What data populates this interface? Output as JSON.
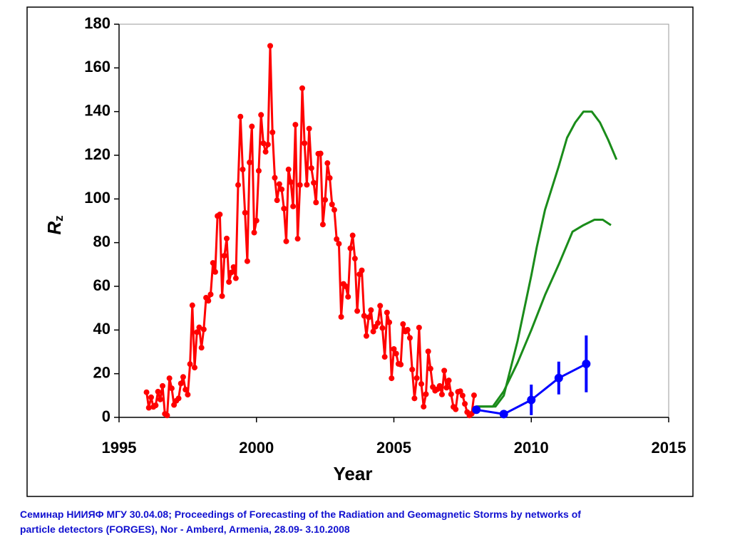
{
  "chart_data": {
    "type": "line",
    "xlabel": "Year",
    "ylabel": {
      "main": "R",
      "sub": "z"
    },
    "xlim": [
      1995,
      2015
    ],
    "xticks": [
      1995,
      2000,
      2005,
      2010,
      2015
    ],
    "ylim": [
      0,
      180
    ],
    "yticks": [
      0,
      20,
      40,
      60,
      80,
      100,
      120,
      140,
      160,
      180
    ],
    "series": [
      {
        "color": "#ff0000",
        "markers": true,
        "x": [
          1996,
          1996.083,
          1996.167,
          1996.25,
          1996.333,
          1996.417,
          1996.5,
          1996.583,
          1996.667,
          1996.75,
          1996.833,
          1996.917,
          1997,
          1997.083,
          1997.167,
          1997.25,
          1997.333,
          1997.417,
          1997.5,
          1997.583,
          1997.667,
          1997.75,
          1997.833,
          1997.917,
          1998,
          1998.083,
          1998.167,
          1998.25,
          1998.333,
          1998.417,
          1998.5,
          1998.583,
          1998.667,
          1998.75,
          1998.833,
          1998.917,
          1999,
          1999.083,
          1999.167,
          1999.25,
          1999.333,
          1999.417,
          1999.5,
          1999.583,
          1999.667,
          1999.75,
          1999.833,
          1999.917,
          2000,
          2000.083,
          2000.167,
          2000.25,
          2000.333,
          2000.417,
          2000.5,
          2000.583,
          2000.667,
          2000.75,
          2000.833,
          2000.917,
          2001,
          2001.083,
          2001.167,
          2001.25,
          2001.333,
          2001.417,
          2001.5,
          2001.583,
          2001.667,
          2001.75,
          2001.833,
          2001.917,
          2002,
          2002.083,
          2002.167,
          2002.25,
          2002.333,
          2002.417,
          2002.5,
          2002.583,
          2002.667,
          2002.75,
          2002.833,
          2002.917,
          2003,
          2003.083,
          2003.167,
          2003.25,
          2003.333,
          2003.417,
          2003.5,
          2003.583,
          2003.667,
          2003.75,
          2003.833,
          2003.917,
          2004,
          2004.083,
          2004.167,
          2004.25,
          2004.333,
          2004.417,
          2004.5,
          2004.583,
          2004.667,
          2004.75,
          2004.833,
          2004.917,
          2005,
          2005.083,
          2005.167,
          2005.25,
          2005.333,
          2005.417,
          2005.5,
          2005.583,
          2005.667,
          2005.75,
          2005.833,
          2005.917,
          2006,
          2006.083,
          2006.167,
          2006.25,
          2006.333,
          2006.417,
          2006.5,
          2006.583,
          2006.667,
          2006.75,
          2006.833,
          2006.917,
          2007,
          2007.083,
          2007.167,
          2007.25,
          2007.333,
          2007.417,
          2007.5,
          2007.583,
          2007.667,
          2007.75,
          2007.833,
          2007.917
        ],
        "values": [
          11.5,
          4.4,
          9.2,
          4.8,
          5.5,
          11.8,
          8.2,
          14.4,
          1.6,
          0.9,
          17.9,
          13.3,
          5.7,
          7.6,
          8.7,
          15.5,
          18.5,
          12.7,
          10.4,
          24.4,
          51.3,
          22.8,
          39,
          41.2,
          31.9,
          40.3,
          54.8,
          53.4,
          56.3,
          70.7,
          66.6,
          92.2,
          92.9,
          55.5,
          74,
          81.9,
          62,
          66.3,
          68.8,
          63.7,
          106.4,
          137.7,
          113.5,
          93.7,
          71.5,
          116.7,
          133.2,
          84.6,
          90.1,
          112.9,
          138.5,
          125.5,
          121.6,
          124.9,
          170.1,
          130.5,
          109.7,
          99.4,
          106.8,
          104.4,
          95.6,
          80.6,
          113.5,
          107.7,
          96.6,
          134,
          81.8,
          106.4,
          150.7,
          125.5,
          106.5,
          132.2,
          114.1,
          107.4,
          98.4,
          120.7,
          120.8,
          88.3,
          99.6,
          116.4,
          109.6,
          97.5,
          95,
          81.6,
          79.5,
          46,
          61.1,
          60,
          55.2,
          77.4,
          83.3,
          72.7,
          48.7,
          65.5,
          67.3,
          46.5,
          37.3,
          45.8,
          49.1,
          39.3,
          41.5,
          43.2,
          51.1,
          40.9,
          27.7,
          48,
          43.5,
          17.9,
          31.3,
          29.2,
          24.5,
          24.2,
          42.7,
          39.3,
          40.1,
          36.4,
          21.9,
          8.7,
          18,
          41.1,
          15.3,
          4.9,
          10.6,
          30.2,
          22.3,
          13.9,
          12.2,
          12.9,
          14.4,
          10.5,
          21.4,
          13.6,
          16.9,
          10.6,
          4.8,
          3.7,
          11.7,
          12,
          10,
          6.2,
          2.4,
          0.9,
          1.7,
          10.1
        ]
      },
      {
        "color": "#1a8c1a",
        "markers": false,
        "x": [
          2008,
          2008.7,
          2009,
          2009.5,
          2010,
          2010.2,
          2010.5,
          2011,
          2011.3,
          2011.6,
          2011.9,
          2012.2,
          2012.5,
          2012.8,
          2013.1
        ],
        "values": [
          5,
          5,
          10,
          35,
          65,
          78,
          95,
          115,
          128,
          135,
          140,
          140,
          135,
          127,
          118
        ]
      },
      {
        "color": "#1a8c1a",
        "markers": false,
        "x": [
          2008,
          2008.6,
          2009,
          2009.5,
          2010,
          2010.5,
          2011,
          2011.5,
          2011.9,
          2012.3,
          2012.6,
          2012.9
        ],
        "values": [
          5,
          5,
          12,
          25,
          40,
          56,
          70,
          85,
          88,
          90.5,
          90.5,
          88
        ]
      },
      {
        "color": "#0000ff",
        "markers": true,
        "x": [
          2008,
          2009,
          2010,
          2011,
          2012
        ],
        "values": [
          3.5,
          1.5,
          8,
          18,
          24.5
        ],
        "errors": [
          null,
          null,
          7,
          7.5,
          13
        ]
      }
    ]
  },
  "footer": [
    "Семинар НИИЯФ МГУ 30.04.08; Proceedings of Forecasting of the Radiation and Geomagnetic Storms by networks of",
    "particle detectors (FORGES), Nor - Amberd, Armenia, 28.09- 3.10.2008"
  ]
}
